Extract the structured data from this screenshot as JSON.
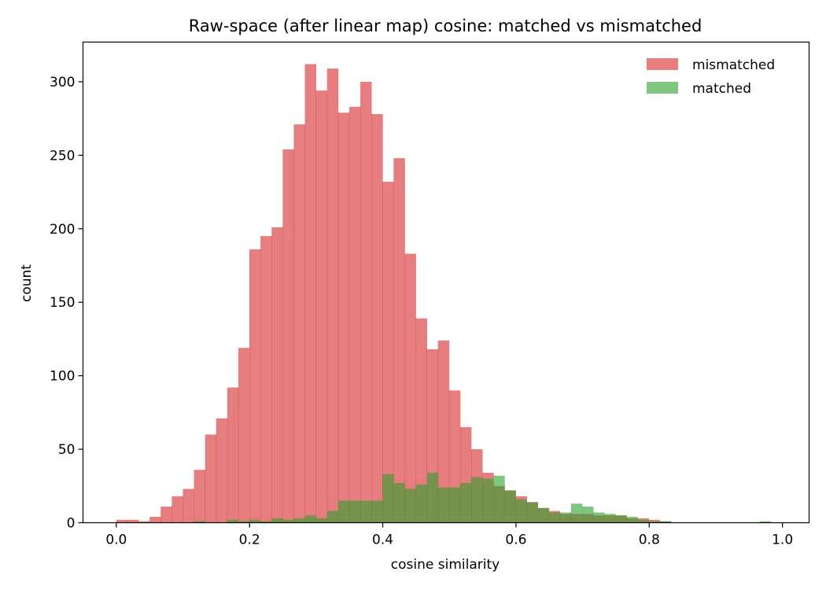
{
  "chart_data": {
    "type": "bar",
    "subtype": "overlapping-histogram",
    "title": "Raw-space (after linear map) cosine: matched vs mismatched",
    "xlabel": "cosine similarity",
    "ylabel": "count",
    "xlim": [
      -0.05,
      1.04
    ],
    "ylim": [
      0,
      327
    ],
    "x_ticks": [
      "0.0",
      "0.2",
      "0.4",
      "0.6",
      "0.8",
      "1.0"
    ],
    "y_ticks": [
      "0",
      "50",
      "100",
      "150",
      "200",
      "250",
      "300"
    ],
    "legend_position": "top-right",
    "colors": {
      "mismatched": "#d62728",
      "matched": "#2ca02c",
      "alpha": 0.6
    },
    "series": [
      {
        "name": "mismatched",
        "bin_start": 0.0,
        "bin_width": 0.01665,
        "counts": [
          2,
          2,
          1,
          4,
          11,
          18,
          23,
          36,
          60,
          71,
          92,
          119,
          186,
          195,
          201,
          254,
          271,
          312,
          294,
          309,
          279,
          283,
          300,
          278,
          232,
          248,
          183,
          139,
          118,
          124,
          90,
          65,
          50,
          34,
          25,
          22,
          18,
          14,
          10,
          8,
          6,
          6,
          6,
          5,
          5,
          5,
          3,
          3,
          2,
          1,
          0,
          0,
          0,
          0,
          0,
          0,
          0,
          0,
          0,
          0
        ]
      },
      {
        "name": "matched",
        "bin_start": 0.0,
        "bin_width": 0.01665,
        "counts": [
          0,
          0,
          0,
          0,
          0,
          0,
          0,
          1,
          0,
          0,
          2,
          1,
          2,
          1,
          3,
          2,
          3,
          5,
          3,
          8,
          15,
          15,
          15,
          15,
          33,
          27,
          23,
          26,
          34,
          24,
          24,
          27,
          31,
          30,
          32,
          22,
          16,
          14,
          10,
          7,
          7,
          13,
          11,
          7,
          6,
          5,
          4,
          2,
          1,
          1,
          0,
          0,
          0,
          0,
          0,
          0,
          0,
          0,
          1,
          0
        ]
      }
    ]
  }
}
